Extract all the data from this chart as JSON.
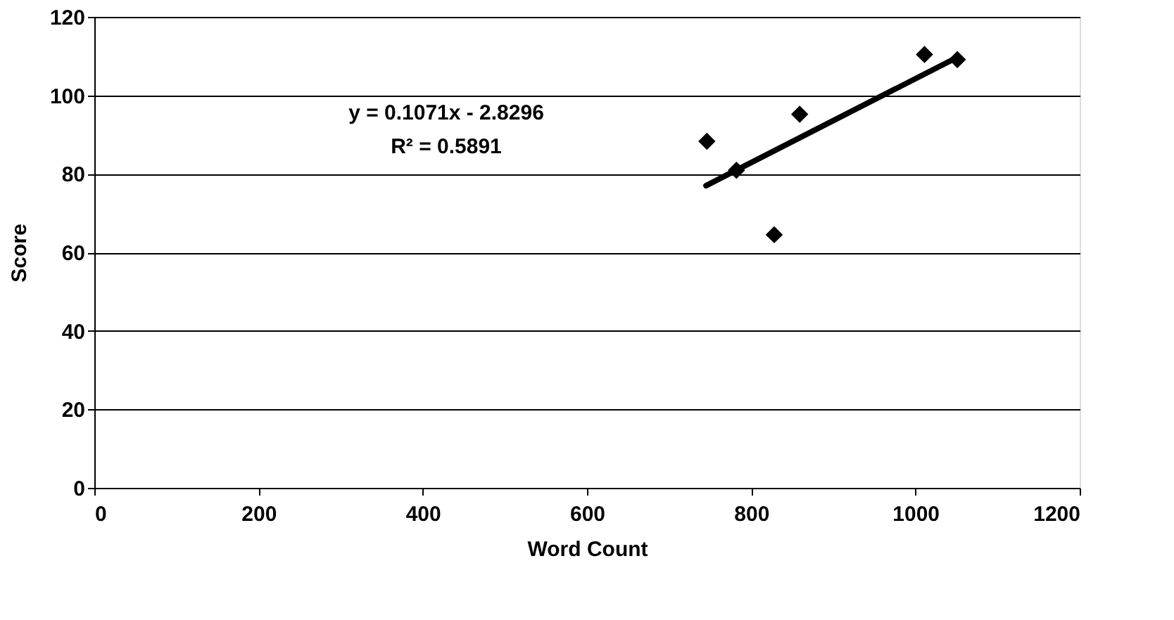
{
  "chart_data": {
    "type": "scatter",
    "xlabel": "Word Count",
    "ylabel": "Score",
    "xlim": [
      0,
      1200
    ],
    "xticks": [
      0,
      200,
      400,
      600,
      800,
      1000,
      1200
    ],
    "ylim": [
      0,
      120
    ],
    "yticks": [
      0,
      20,
      40,
      60,
      80,
      100,
      120
    ],
    "grid": "y",
    "marker": "diamond",
    "series": [
      {
        "color": "#000000",
        "x": [
          746,
          782,
          828,
          859,
          1011,
          1051
        ],
        "values": [
          88.3,
          80.9,
          64.5,
          95.2,
          110.4,
          109.1
        ]
      },
      {
        "type": "line",
        "color": "#000000",
        "marker": "none",
        "line_style": "solid",
        "x": [
          745,
          1051
        ],
        "values": [
          77.0,
          109.7
        ]
      }
    ],
    "annotations": [
      "y = 0.1071x - 2.8296",
      "R² = 0.5891"
    ]
  }
}
